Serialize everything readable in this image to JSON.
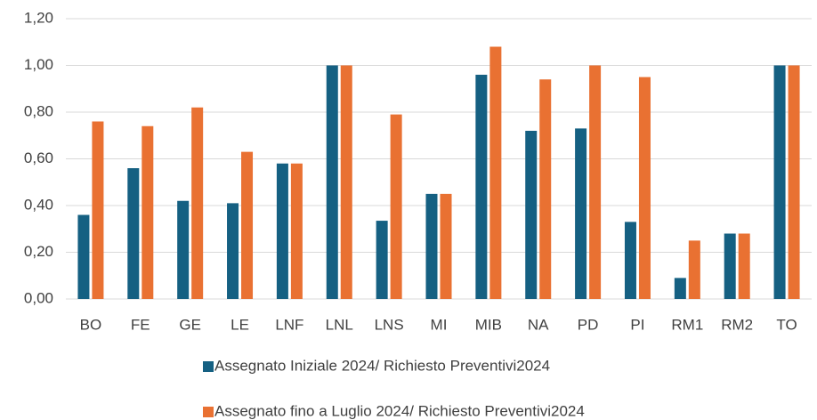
{
  "chart_data": {
    "type": "bar",
    "categories": [
      "BO",
      "FE",
      "GE",
      "LE",
      "LNF",
      "LNL",
      "LNS",
      "MI",
      "MIB",
      "NA",
      "PD",
      "PI",
      "RM1",
      "RM2",
      "TO"
    ],
    "series": [
      {
        "name": "Assegnato Iniziale 2024/ Richiesto Preventivi2024",
        "color": "#156082",
        "values": [
          0.36,
          0.56,
          0.42,
          0.41,
          0.58,
          1.0,
          0.335,
          0.45,
          0.96,
          0.72,
          0.73,
          0.33,
          0.09,
          0.28,
          1.0
        ]
      },
      {
        "name": "Assegnato fino a Luglio 2024/ Richiesto Preventivi2024",
        "color": "#e97132",
        "values": [
          0.76,
          0.74,
          0.82,
          0.63,
          0.58,
          1.0,
          0.79,
          0.45,
          1.08,
          0.94,
          1.0,
          0.95,
          0.25,
          0.28,
          1.0
        ]
      }
    ],
    "ylim": [
      0,
      1.2
    ],
    "yticks": [
      {
        "value": 0,
        "label": "0,00"
      },
      {
        "value": 0.2,
        "label": "0,20"
      },
      {
        "value": 0.4,
        "label": "0,40"
      },
      {
        "value": 0.6,
        "label": "0,60"
      },
      {
        "value": 0.8,
        "label": "0,80"
      },
      {
        "value": 1.0,
        "label": "1,00"
      },
      {
        "value": 1.2,
        "label": "1,20"
      }
    ],
    "grid": true,
    "legend": "bottom"
  }
}
